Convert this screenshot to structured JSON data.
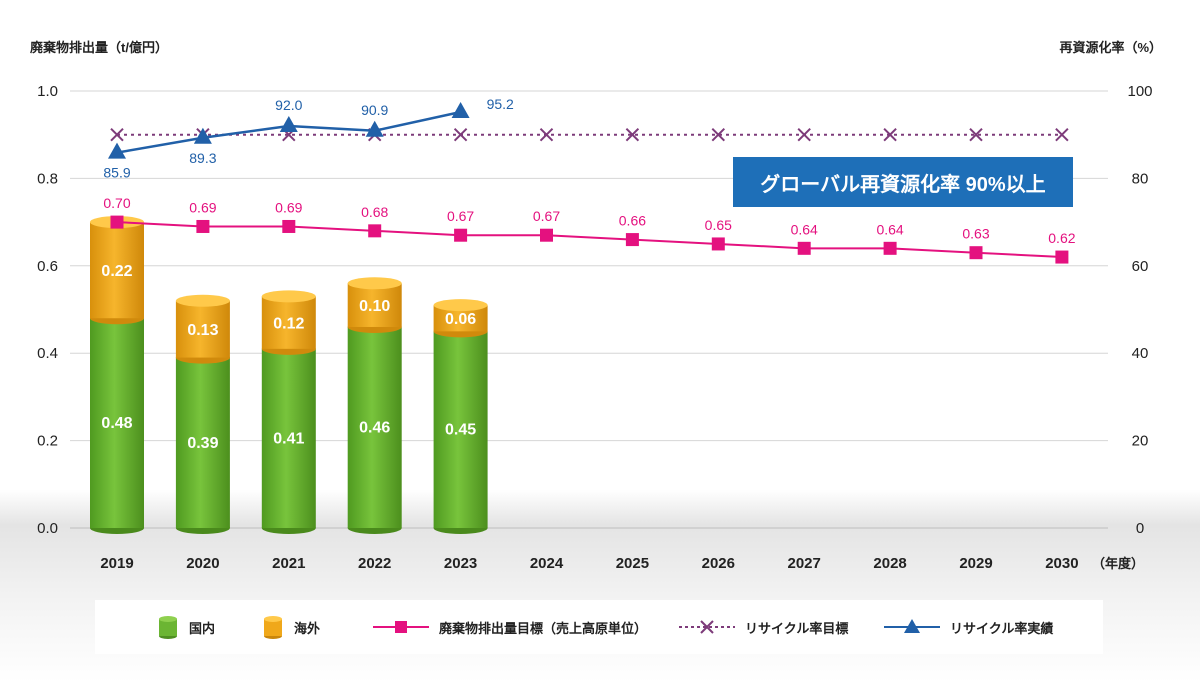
{
  "colors": {
    "domestic": "#6bb533",
    "overseas": "#f0a81a",
    "waste_line": "#e4117f",
    "target_line": "#7d3b7a",
    "actual_line": "#2160a8",
    "callout_bg": "#1e6fb8",
    "axis_text": "#222222",
    "grid": "#d6d6d6"
  },
  "chart_data": {
    "type": "bar",
    "left_axis_title": "廃棄物排出量（t/億円）",
    "right_axis_title": "再資源化率（%）",
    "x_unit": "（年度）",
    "categories": [
      "2019",
      "2020",
      "2021",
      "2022",
      "2023",
      "2024",
      "2025",
      "2026",
      "2027",
      "2028",
      "2029",
      "2030"
    ],
    "y_left": {
      "min": 0.0,
      "max": 1.0,
      "ticks": [
        "0.0",
        "0.2",
        "0.4",
        "0.6",
        "0.8",
        "1.0"
      ]
    },
    "y_right": {
      "min": 0,
      "max": 100,
      "ticks": [
        "0",
        "20",
        "40",
        "60",
        "80",
        "100"
      ]
    },
    "grid": true,
    "stacked_bars": [
      {
        "name": "国内",
        "axis": "left",
        "values": [
          0.48,
          0.39,
          0.41,
          0.46,
          0.45,
          null,
          null,
          null,
          null,
          null,
          null,
          null
        ],
        "labels": [
          "0.48",
          "0.39",
          "0.41",
          "0.46",
          "0.45"
        ]
      },
      {
        "name": "海外",
        "axis": "left",
        "values": [
          0.22,
          0.13,
          0.12,
          0.1,
          0.06,
          null,
          null,
          null,
          null,
          null,
          null,
          null
        ],
        "labels": [
          "0.22",
          "0.13",
          "0.12",
          "0.10",
          "0.06"
        ]
      }
    ],
    "lines": [
      {
        "name": "廃棄物排出量目標（売上高原単位）",
        "axis": "left",
        "marker": "square",
        "style": "solid",
        "values": [
          0.7,
          0.69,
          0.69,
          0.68,
          0.67,
          0.67,
          0.66,
          0.65,
          0.64,
          0.64,
          0.63,
          0.62
        ],
        "labels": [
          "0.70",
          "0.69",
          "0.69",
          "0.68",
          "0.67",
          "0.67",
          "0.66",
          "0.65",
          "0.64",
          "0.64",
          "0.63",
          "0.62"
        ]
      },
      {
        "name": "リサイクル率目標",
        "axis": "right",
        "marker": "x",
        "style": "dotted",
        "values": [
          90,
          90,
          90,
          90,
          90,
          90,
          90,
          90,
          90,
          90,
          90,
          90
        ]
      },
      {
        "name": "リサイクル率実績",
        "axis": "right",
        "marker": "triangle",
        "style": "solid",
        "values": [
          85.9,
          89.3,
          92.0,
          90.9,
          95.2,
          null,
          null,
          null,
          null,
          null,
          null,
          null
        ],
        "labels": [
          "85.9",
          "89.3",
          "92.0",
          "90.9",
          "95.2"
        ]
      }
    ],
    "annotation": "グローバル再資源化率 90%以上",
    "legend_position": "bottom"
  }
}
